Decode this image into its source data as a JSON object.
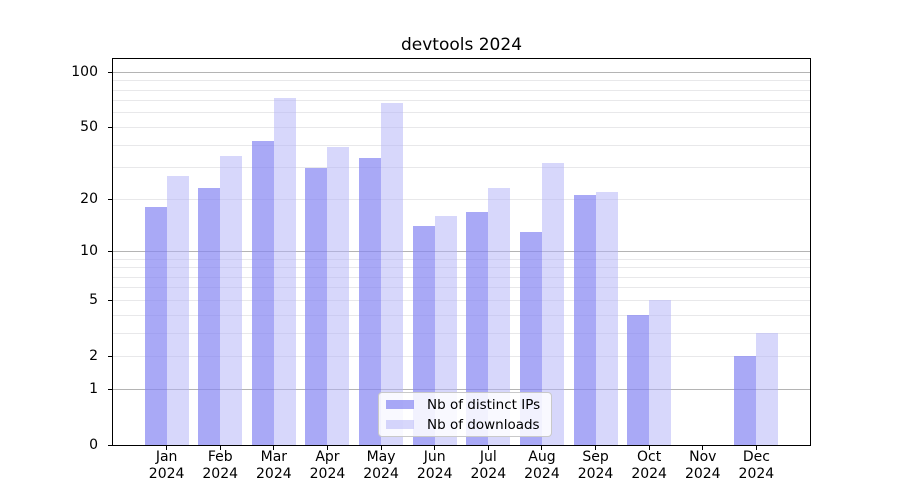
{
  "chart_data": {
    "type": "bar",
    "title": "devtools 2024",
    "categories": [
      "Jan",
      "Feb",
      "Mar",
      "Apr",
      "May",
      "Jun",
      "Jul",
      "Aug",
      "Sep",
      "Oct",
      "Nov",
      "Dec"
    ],
    "year_label": "2024",
    "series": [
      {
        "name": "Nb of distinct IPs",
        "color": "rgba(132,132,242,0.70)",
        "values": [
          18,
          23,
          42,
          30,
          34,
          14,
          17,
          13,
          21,
          4,
          0,
          2
        ]
      },
      {
        "name": "Nb of downloads",
        "color": "rgba(178,178,247,0.52)",
        "values": [
          27,
          35,
          72,
          39,
          68,
          16,
          23,
          32,
          22,
          5,
          0,
          3
        ]
      }
    ],
    "yscale": "log1p",
    "ylim": [
      0,
      118
    ],
    "yticks": [
      100,
      50,
      20,
      10,
      5,
      2,
      1,
      0
    ],
    "y_gridlines_major": [
      100,
      10,
      1
    ],
    "y_gridlines_minor": [
      50,
      20,
      5,
      2,
      3,
      4,
      6,
      7,
      8,
      9,
      30,
      40,
      60,
      70,
      80,
      90
    ],
    "grid": true,
    "legend_position": "lower center",
    "colors": {
      "axis": "#000000",
      "grid_major": "#b4b4b4",
      "grid_minor": "#e8e8ea",
      "legend_border": "#c9c9c9",
      "text": "#000000"
    }
  }
}
